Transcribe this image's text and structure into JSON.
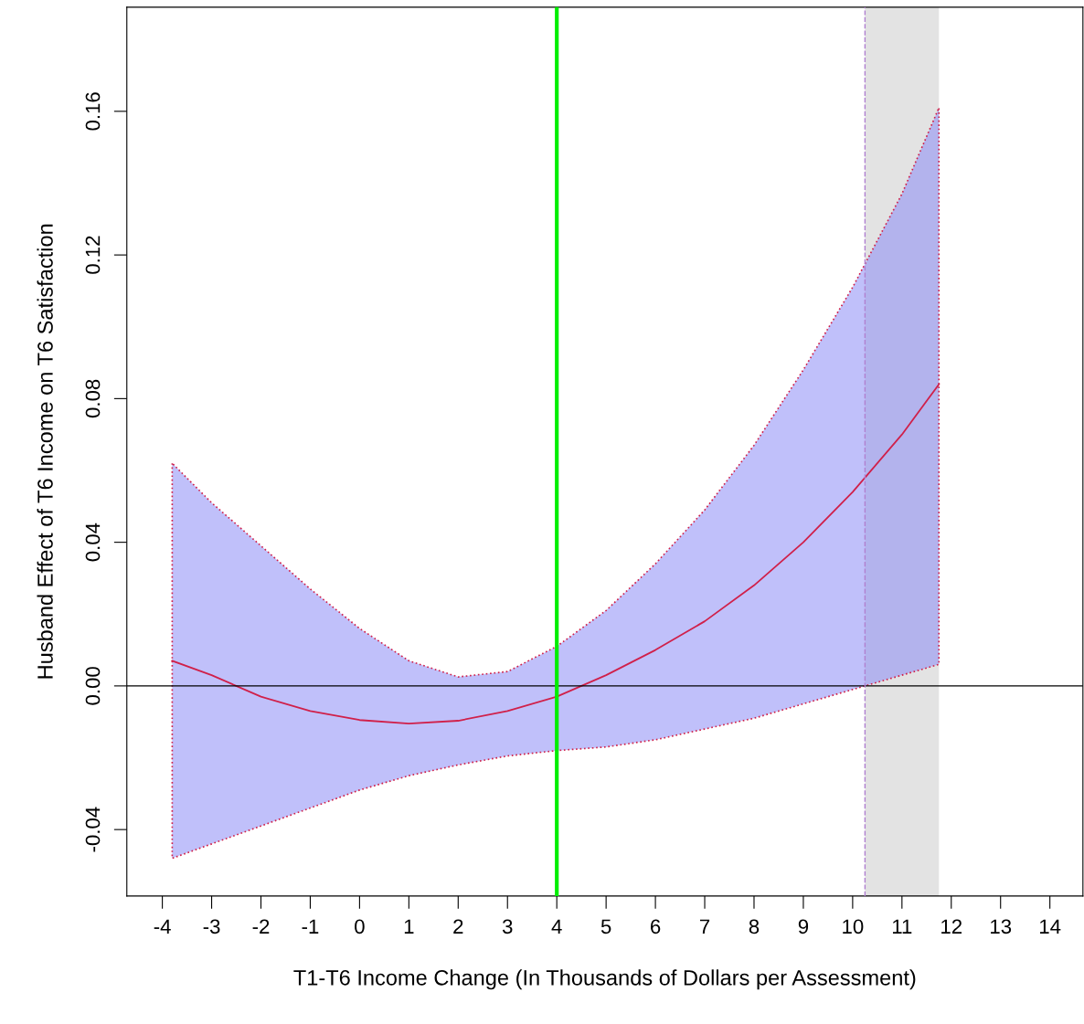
{
  "chart_data": {
    "type": "line",
    "xlabel": "T1-T6 Income Change (In Thousands of Dollars per Assessment)",
    "ylabel": "Husband Effect of T6 Income on T6 Satisfaction",
    "x": [
      -3.8,
      -3,
      -2,
      -1,
      0,
      1,
      2,
      3,
      4,
      5,
      6,
      7,
      8,
      9,
      10,
      11,
      11.75
    ],
    "series": [
      {
        "color": "#d0204a",
        "values": [
          0.007,
          0.003,
          -0.003,
          -0.007,
          -0.0095,
          -0.0105,
          -0.0097,
          -0.007,
          -0.003,
          0.003,
          0.01,
          0.018,
          0.028,
          0.04,
          0.054,
          0.07,
          0.084
        ],
        "upper": [
          0.062,
          0.051,
          0.039,
          0.027,
          0.016,
          0.007,
          0.0025,
          0.004,
          0.011,
          0.021,
          0.034,
          0.049,
          0.067,
          0.088,
          0.111,
          0.137,
          0.161
        ],
        "lower": [
          -0.048,
          -0.044,
          -0.039,
          -0.034,
          -0.029,
          -0.025,
          -0.022,
          -0.0195,
          -0.018,
          -0.017,
          -0.015,
          -0.012,
          -0.009,
          -0.005,
          -0.001,
          0.003,
          0.006
        ]
      }
    ],
    "xlim": [
      -4.72,
      14.67
    ],
    "ylim": [
      -0.0585,
      0.189
    ],
    "xticks": [
      -4,
      -3,
      -2,
      -1,
      0,
      1,
      2,
      3,
      4,
      5,
      6,
      7,
      8,
      9,
      10,
      11,
      12,
      13,
      14
    ],
    "yticks": [
      -0.04,
      {
        "value": 0,
        "label": "0.00"
      },
      0.04,
      0.08,
      0.12,
      0.16
    ],
    "ref_lines": [
      {
        "axis": "y",
        "value": 0,
        "color": "#000000",
        "line_style": "solid"
      },
      {
        "axis": "x",
        "value": 4,
        "color": "#00ee00",
        "line_style": "solid"
      },
      {
        "axis": "x",
        "value": 10.25,
        "color": "#b080d0",
        "line_style": "dashed"
      }
    ],
    "bands": [
      {
        "axis": "x",
        "from": 10.25,
        "to": 11.75,
        "color": "#e3e3e3"
      }
    ],
    "grid": false,
    "legend": false,
    "marker": "none",
    "line_style": "solid"
  }
}
